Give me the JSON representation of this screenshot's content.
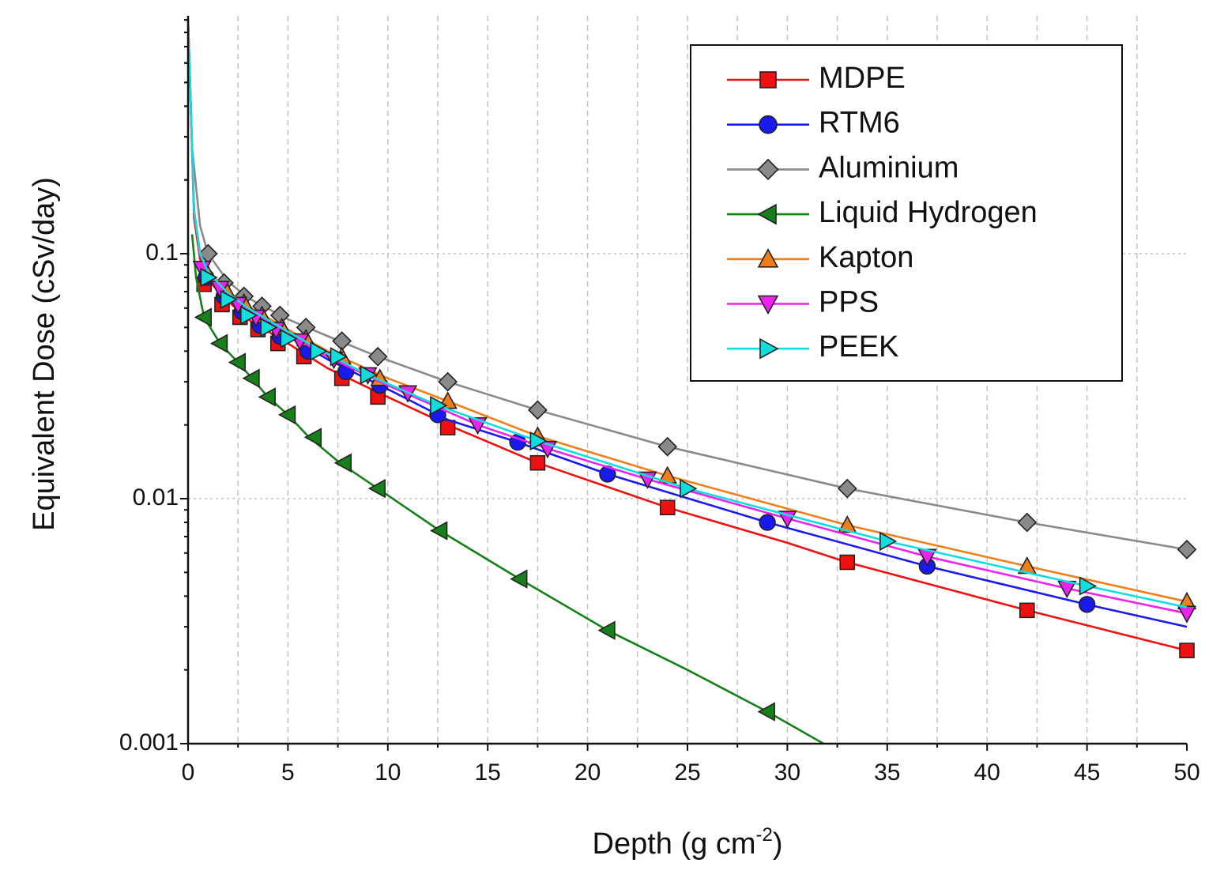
{
  "chart_data": {
    "type": "line",
    "xlabel": "Depth (g cm",
    "xlabel_sup": "-2",
    "xlabel_close": ")",
    "ylabel": "Equivalent Dose (cSv/day)",
    "xlim": [
      0,
      50
    ],
    "ylim": [
      0.001,
      1
    ],
    "yscale": "log",
    "grid": true,
    "legend_position": "top-right",
    "x_ticks": [
      0,
      5,
      10,
      15,
      20,
      25,
      30,
      35,
      40,
      45,
      50
    ],
    "x_tick_labels": [
      "0",
      "5",
      "10",
      "15",
      "20",
      "25",
      "30",
      "35",
      "40",
      "45",
      "50"
    ],
    "y_ticks": [
      0.001,
      0.01,
      0.1
    ],
    "y_tick_labels": [
      "0.001",
      "0.01",
      "0.1"
    ],
    "series": [
      {
        "name": "MDPE",
        "color": "#ee1111",
        "marker": "square",
        "marker_color": "#ee1111",
        "curve": [
          [
            0,
            0.9
          ],
          [
            0.3,
            0.14
          ],
          [
            0.6,
            0.095
          ],
          [
            1,
            0.078
          ],
          [
            2,
            0.064
          ],
          [
            3,
            0.054
          ],
          [
            5,
            0.043
          ],
          [
            7,
            0.034
          ],
          [
            10,
            0.026
          ],
          [
            13,
            0.02
          ],
          [
            17.5,
            0.014
          ],
          [
            24,
            0.0092
          ],
          [
            30,
            0.0066
          ],
          [
            33,
            0.0055
          ],
          [
            37,
            0.0045
          ],
          [
            42,
            0.0035
          ],
          [
            46,
            0.0029
          ],
          [
            50,
            0.0024
          ]
        ],
        "markers": [
          [
            0.8,
            0.075
          ],
          [
            1.7,
            0.062
          ],
          [
            2.6,
            0.055
          ],
          [
            3.5,
            0.049
          ],
          [
            4.5,
            0.043
          ],
          [
            5.8,
            0.038
          ],
          [
            7.7,
            0.031
          ],
          [
            9.5,
            0.026
          ],
          [
            13,
            0.0195
          ],
          [
            17.5,
            0.014
          ],
          [
            24,
            0.0092
          ],
          [
            33,
            0.0055
          ],
          [
            42,
            0.0035
          ],
          [
            50,
            0.0024
          ]
        ]
      },
      {
        "name": "RTM6",
        "color": "#1a1aee",
        "marker": "circle",
        "marker_color": "#1a1aee",
        "curve": [
          [
            0,
            0.9
          ],
          [
            0.3,
            0.15
          ],
          [
            0.6,
            0.1
          ],
          [
            1,
            0.082
          ],
          [
            2,
            0.067
          ],
          [
            3,
            0.058
          ],
          [
            5,
            0.046
          ],
          [
            7,
            0.037
          ],
          [
            10,
            0.028
          ],
          [
            13,
            0.021
          ],
          [
            16.5,
            0.017
          ],
          [
            21,
            0.0126
          ],
          [
            29,
            0.008
          ],
          [
            37,
            0.0053
          ],
          [
            45,
            0.0037
          ],
          [
            50,
            0.003
          ]
        ],
        "markers": [
          [
            0.9,
            0.08
          ],
          [
            1.8,
            0.067
          ],
          [
            2.7,
            0.058
          ],
          [
            3.6,
            0.051
          ],
          [
            4.6,
            0.046
          ],
          [
            6,
            0.04
          ],
          [
            7.9,
            0.033
          ],
          [
            9.6,
            0.029
          ],
          [
            12.5,
            0.022
          ],
          [
            16.5,
            0.017
          ],
          [
            21,
            0.0126
          ],
          [
            29,
            0.008
          ],
          [
            37,
            0.0053
          ],
          [
            45,
            0.0037
          ]
        ]
      },
      {
        "name": "Aluminium",
        "color": "#8a8a8a",
        "marker": "diamond",
        "marker_color": "#8a8a8a",
        "curve": [
          [
            0,
            0.9
          ],
          [
            0.2,
            0.27
          ],
          [
            0.6,
            0.13
          ],
          [
            1,
            0.1
          ],
          [
            2,
            0.077
          ],
          [
            3,
            0.066
          ],
          [
            5,
            0.054
          ],
          [
            7,
            0.046
          ],
          [
            9.5,
            0.038
          ],
          [
            13,
            0.03
          ],
          [
            17.5,
            0.023
          ],
          [
            24,
            0.0163
          ],
          [
            33,
            0.011
          ],
          [
            42,
            0.008
          ],
          [
            50,
            0.0062
          ]
        ],
        "markers": [
          [
            1,
            0.1
          ],
          [
            1.8,
            0.076
          ],
          [
            2.8,
            0.067
          ],
          [
            3.7,
            0.061
          ],
          [
            4.6,
            0.056
          ],
          [
            5.9,
            0.05
          ],
          [
            7.7,
            0.044
          ],
          [
            9.5,
            0.038
          ],
          [
            13,
            0.03
          ],
          [
            17.5,
            0.023
          ],
          [
            24,
            0.0163
          ],
          [
            33,
            0.011
          ],
          [
            42,
            0.008
          ],
          [
            50,
            0.0062
          ]
        ]
      },
      {
        "name": "Liquid Hydrogen",
        "color": "#17801a",
        "marker": "triangle-left",
        "marker_color": "#17801a",
        "curve": [
          [
            0.2,
            0.12
          ],
          [
            0.4,
            0.08
          ],
          [
            0.8,
            0.055
          ],
          [
            1.6,
            0.043
          ],
          [
            2.5,
            0.036
          ],
          [
            3.2,
            0.031
          ],
          [
            4,
            0.026
          ],
          [
            5,
            0.022
          ],
          [
            6,
            0.018
          ],
          [
            7.6,
            0.014
          ],
          [
            9.5,
            0.011
          ],
          [
            12.6,
            0.0074
          ],
          [
            16.6,
            0.0047
          ],
          [
            21,
            0.0029
          ],
          [
            25,
            0.002
          ],
          [
            29,
            0.00135
          ],
          [
            32,
            0.00098
          ]
        ],
        "markers": [
          [
            0.8,
            0.055
          ],
          [
            1.6,
            0.043
          ],
          [
            2.5,
            0.036
          ],
          [
            3.2,
            0.031
          ],
          [
            4,
            0.026
          ],
          [
            5,
            0.022
          ],
          [
            6.3,
            0.0178
          ],
          [
            7.8,
            0.014
          ],
          [
            9.5,
            0.011
          ],
          [
            12.6,
            0.0074
          ],
          [
            16.6,
            0.0047
          ],
          [
            21,
            0.0029
          ],
          [
            29,
            0.00135
          ]
        ]
      },
      {
        "name": "Kapton",
        "color": "#ef7f1a",
        "marker": "triangle-up",
        "marker_color": "#ef7f1a",
        "curve": [
          [
            0,
            0.9
          ],
          [
            0.3,
            0.15
          ],
          [
            0.6,
            0.1
          ],
          [
            1,
            0.085
          ],
          [
            2,
            0.07
          ],
          [
            3,
            0.061
          ],
          [
            5,
            0.049
          ],
          [
            7,
            0.04
          ],
          [
            10,
            0.031
          ],
          [
            13,
            0.025
          ],
          [
            17.5,
            0.018
          ],
          [
            24,
            0.0124
          ],
          [
            33,
            0.0078
          ],
          [
            42,
            0.0053
          ],
          [
            50,
            0.0038
          ]
        ],
        "markers": [
          [
            1,
            0.082
          ],
          [
            1.9,
            0.071
          ],
          [
            2.8,
            0.063
          ],
          [
            3.7,
            0.056
          ],
          [
            4.7,
            0.05
          ],
          [
            5.9,
            0.045
          ],
          [
            7.7,
            0.038
          ],
          [
            9.6,
            0.031
          ],
          [
            13,
            0.025
          ],
          [
            17.5,
            0.018
          ],
          [
            24,
            0.0124
          ],
          [
            33,
            0.0078
          ],
          [
            42,
            0.0053
          ],
          [
            50,
            0.0038
          ]
        ]
      },
      {
        "name": "PPS",
        "color": "#ee22ee",
        "marker": "triangle-down",
        "marker_color": "#ee22ee",
        "curve": [
          [
            0,
            0.9
          ],
          [
            0.3,
            0.15
          ],
          [
            0.6,
            0.1
          ],
          [
            1,
            0.083
          ],
          [
            2,
            0.068
          ],
          [
            3,
            0.059
          ],
          [
            5,
            0.047
          ],
          [
            7,
            0.038
          ],
          [
            10,
            0.029
          ],
          [
            14.5,
            0.02
          ],
          [
            18,
            0.016
          ],
          [
            23,
            0.012
          ],
          [
            30,
            0.0083
          ],
          [
            37,
            0.0058
          ],
          [
            44,
            0.0043
          ],
          [
            50,
            0.0034
          ]
        ],
        "markers": [
          [
            0.7,
            0.087
          ],
          [
            1.6,
            0.072
          ],
          [
            2.5,
            0.062
          ],
          [
            3.4,
            0.055
          ],
          [
            4.4,
            0.049
          ],
          [
            5.6,
            0.044
          ],
          [
            7.3,
            0.037
          ],
          [
            9,
            0.032
          ],
          [
            11,
            0.027
          ],
          [
            14.5,
            0.02
          ],
          [
            18,
            0.016
          ],
          [
            23,
            0.012
          ],
          [
            30,
            0.0083
          ],
          [
            37,
            0.0058
          ],
          [
            44,
            0.0043
          ],
          [
            50,
            0.0034
          ]
        ]
      },
      {
        "name": "PEEK",
        "color": "#11dddd",
        "marker": "triangle-right",
        "marker_color": "#11dddd",
        "curve": [
          [
            0,
            0.9
          ],
          [
            0.3,
            0.15
          ],
          [
            0.6,
            0.1
          ],
          [
            1,
            0.084
          ],
          [
            2,
            0.069
          ],
          [
            3,
            0.06
          ],
          [
            5,
            0.048
          ],
          [
            7,
            0.039
          ],
          [
            9,
            0.032
          ],
          [
            12.5,
            0.024
          ],
          [
            17.5,
            0.0172
          ],
          [
            25,
            0.011
          ],
          [
            35,
            0.0067
          ],
          [
            45,
            0.0044
          ],
          [
            50,
            0.0036
          ]
        ],
        "markers": [
          [
            1,
            0.08
          ],
          [
            2,
            0.065
          ],
          [
            3,
            0.056
          ],
          [
            4,
            0.05
          ],
          [
            5,
            0.045
          ],
          [
            6.5,
            0.04
          ],
          [
            7.5,
            0.038
          ],
          [
            9,
            0.032
          ],
          [
            12.5,
            0.024
          ],
          [
            17.5,
            0.0172
          ],
          [
            25,
            0.011
          ],
          [
            35,
            0.0067
          ],
          [
            45,
            0.0044
          ]
        ]
      }
    ]
  }
}
